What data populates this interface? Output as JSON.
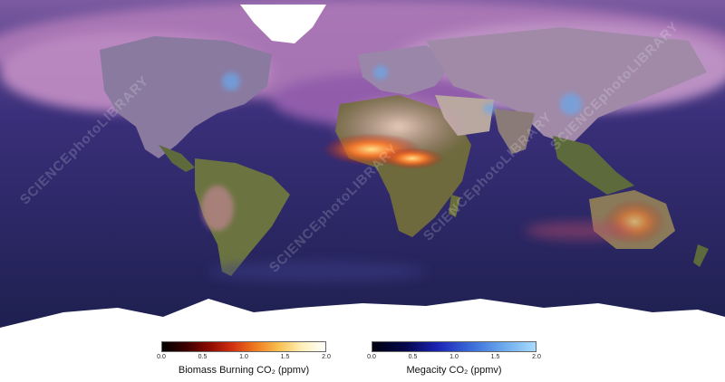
{
  "watermark": "SCIENCEphotoLIBRARY",
  "colors": {
    "ocean": "#1c1f4d",
    "land": "#5e6a3e",
    "plume": "#b68ac4",
    "ice": "#ffffff",
    "fire": "#ffb347"
  },
  "legends": [
    {
      "id": "biomass",
      "title": "Biomass Burning CO₂  (ppmv)",
      "ticks": [
        "0.0",
        "0.5",
        "1.0",
        "1.5",
        "2.0"
      ]
    },
    {
      "id": "megacity",
      "title": "Megacity CO₂  (ppmv)",
      "ticks": [
        "0.0",
        "0.5",
        "1.0",
        "1.5",
        "2.0"
      ]
    }
  ]
}
